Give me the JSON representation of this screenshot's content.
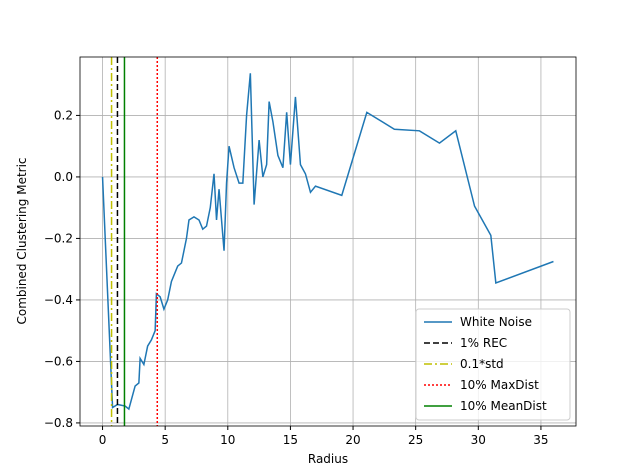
{
  "chart_data": {
    "type": "line",
    "xlabel": "Radius",
    "ylabel": "Combined Clustering Metric",
    "xlim": [
      -1.8,
      37.8
    ],
    "ylim": [
      -0.81,
      0.39
    ],
    "xticks": [
      0,
      5,
      10,
      15,
      20,
      25,
      30,
      35
    ],
    "yticks": [
      {
        "value": -0.8,
        "label": "−0.8"
      },
      {
        "value": -0.6,
        "label": "−0.6"
      },
      {
        "value": -0.4,
        "label": "−0.4"
      },
      {
        "value": -0.2,
        "label": "−0.2"
      },
      {
        "value": 0,
        "label": "0.0"
      },
      0.2
    ],
    "grid": true,
    "legend": "lower right",
    "series": [
      {
        "name": "White Noise",
        "color": "#1f77b4",
        "x": [
          0,
          0.8,
          1.2,
          1.8,
          2.1,
          2.6,
          2.9,
          3.0,
          3.3,
          3.6,
          3.9,
          4.2,
          4.3,
          4.6,
          4.9,
          5.2,
          5.5,
          6.0,
          6.3,
          6.7,
          6.9,
          7.3,
          7.7,
          8.0,
          8.3,
          8.6,
          8.9,
          9.1,
          9.3,
          9.7,
          9.9,
          10.1,
          10.5,
          10.9,
          11.2,
          11.5,
          11.8,
          12.1,
          12.5,
          12.8,
          13.1,
          13.3,
          13.6,
          14.0,
          14.4,
          14.7,
          15.0,
          15.4,
          15.8,
          16.2,
          16.6,
          17.0,
          19.1,
          21.1,
          23.3,
          25.3,
          26.9,
          28.2,
          29.7,
          31.0,
          31.4,
          36.0
        ],
        "values": [
          0,
          -0.75,
          -0.74,
          -0.745,
          -0.755,
          -0.68,
          -0.67,
          -0.59,
          -0.61,
          -0.55,
          -0.53,
          -0.5,
          -0.38,
          -0.39,
          -0.43,
          -0.4,
          -0.34,
          -0.29,
          -0.28,
          -0.2,
          -0.14,
          -0.13,
          -0.14,
          -0.17,
          -0.16,
          -0.1,
          0.01,
          -0.14,
          -0.04,
          -0.24,
          -0.02,
          0.1,
          0.03,
          -0.02,
          -0.02,
          0.2,
          0.337,
          -0.09,
          0.12,
          0.0,
          0.04,
          0.245,
          0.18,
          0.07,
          0.03,
          0.21,
          0.04,
          0.26,
          0.04,
          0.01,
          -0.05,
          -0.03,
          -0.06,
          0.21,
          0.155,
          0.15,
          0.11,
          0.15,
          -0.095,
          -0.19,
          -0.345,
          -0.275
        ]
      }
    ],
    "vlines": [
      {
        "name": "1% REC",
        "color": "#000000",
        "x": 1.19,
        "dash": "6,3"
      },
      {
        "name": "0.1*std",
        "color": "#bfbf00",
        "x": 0.72,
        "dash": "8,3,2,3"
      },
      {
        "name": "10% MaxDist",
        "color": "#ff0000",
        "x": 4.37,
        "dash": "2,2"
      },
      {
        "name": "10% MeanDist",
        "color": "#008000",
        "x": 1.75,
        "dash": "none"
      }
    ]
  }
}
